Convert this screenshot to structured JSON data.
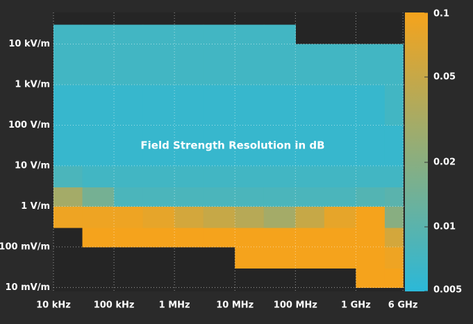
{
  "chart_data": {
    "type": "heatmap",
    "title": "Field Strength Resolution in dB",
    "xscale": "log",
    "yscale": "log",
    "cscale": "log",
    "grid": true,
    "xlim": [
      10000,
      6300000000
    ],
    "xticks": [
      {
        "value": 10000,
        "label": "10 kHz"
      },
      {
        "value": 100000,
        "label": "100 kHz"
      },
      {
        "value": 1000000,
        "label": "1 MHz"
      },
      {
        "value": 10000000,
        "label": "10 MHz"
      },
      {
        "value": 100000000,
        "label": "100 MHz"
      },
      {
        "value": 1000000000,
        "label": "1 GHz"
      },
      {
        "value": 6000000000,
        "label": "6 GHz"
      }
    ],
    "ylim": [
      0.008,
      60000
    ],
    "yticks": [
      {
        "value": 0.01,
        "label": "10 mV/m"
      },
      {
        "value": 0.1,
        "label": "100 mV/m"
      },
      {
        "value": 1,
        "label": "1 V/m"
      },
      {
        "value": 10,
        "label": "10 V/m"
      },
      {
        "value": 100,
        "label": "100 V/m"
      },
      {
        "value": 1000,
        "label": "1 kV/m"
      },
      {
        "value": 10000,
        "label": "10 kV/m"
      }
    ],
    "clim": [
      0.005,
      0.1
    ],
    "cticks": [
      0.005,
      0.01,
      0.02,
      0.05,
      0.1
    ],
    "colormap": [
      "#2bb8d8",
      "#f5a31c"
    ],
    "x_edges": [
      10000,
      30000,
      100000,
      300000,
      1000000,
      3000000,
      10000000,
      30000000,
      100000000,
      300000000,
      1000000000,
      3000000000,
      6000000000
    ],
    "y_edges": [
      0.01,
      0.03,
      0.1,
      0.3,
      1,
      3,
      10,
      100,
      1000,
      10000,
      30000
    ],
    "z": [
      [
        null,
        null,
        null,
        null,
        null,
        null,
        null,
        null,
        null,
        null,
        0.1,
        0.1
      ],
      [
        null,
        null,
        null,
        null,
        null,
        null,
        0.1,
        0.1,
        0.1,
        0.1,
        0.1,
        0.09
      ],
      [
        null,
        0.1,
        0.1,
        0.1,
        0.1,
        0.1,
        0.1,
        0.1,
        0.1,
        0.1,
        0.1,
        0.06
      ],
      [
        0.09,
        0.09,
        0.09,
        0.08,
        0.06,
        0.05,
        0.04,
        0.03,
        0.05,
        0.08,
        0.1,
        0.02
      ],
      [
        0.03,
        0.015,
        0.008,
        0.008,
        0.008,
        0.008,
        0.008,
        0.008,
        0.008,
        0.008,
        0.009,
        0.01
      ],
      [
        0.008,
        0.007,
        0.007,
        0.007,
        0.007,
        0.007,
        0.007,
        0.007,
        0.007,
        0.007,
        0.007,
        0.007
      ],
      [
        0.006,
        0.006,
        0.006,
        0.006,
        0.006,
        0.006,
        0.006,
        0.006,
        0.006,
        0.006,
        0.006,
        0.006
      ],
      [
        0.006,
        0.006,
        0.006,
        0.006,
        0.006,
        0.006,
        0.006,
        0.006,
        0.006,
        0.006,
        0.006,
        0.007
      ],
      [
        0.007,
        0.007,
        0.007,
        0.007,
        0.007,
        0.007,
        0.007,
        0.007,
        0.007,
        0.007,
        0.007,
        0.007
      ],
      [
        0.007,
        0.007,
        0.007,
        0.007,
        0.007,
        0.007,
        0.007,
        0.007,
        null,
        null,
        null,
        null
      ]
    ]
  }
}
